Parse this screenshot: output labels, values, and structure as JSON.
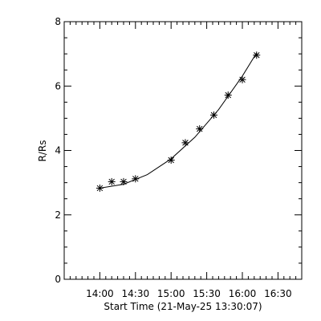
{
  "chart_data": {
    "type": "scatter",
    "title": "",
    "xlabel": "Start Time (21-May-25 13:30:07)",
    "ylabel": "R/Rs",
    "xlim": [
      "13:30",
      "16:50"
    ],
    "ylim": [
      0,
      8
    ],
    "x_ticks": [
      "14:00",
      "14:30",
      "15:00",
      "15:30",
      "16:00",
      "16:30"
    ],
    "y_ticks": [
      0,
      2,
      4,
      6,
      8
    ],
    "grid": false,
    "legend": "none",
    "series": [
      {
        "marker": "asterisk",
        "x": [
          "14:00",
          "14:10",
          "14:20",
          "14:30",
          "15:00",
          "15:12",
          "15:24",
          "15:36",
          "15:48",
          "16:00",
          "16:12"
        ],
        "y": [
          2.83,
          3.03,
          3.03,
          3.12,
          3.7,
          4.24,
          4.67,
          5.1,
          5.72,
          6.2,
          6.96
        ]
      }
    ],
    "fit_curve": {
      "type": "quadratic",
      "x": [
        "14:00",
        "14:20",
        "14:40",
        "15:00",
        "15:20",
        "15:40",
        "16:00",
        "16:12"
      ],
      "y": [
        2.83,
        2.95,
        3.25,
        3.74,
        4.41,
        5.27,
        6.31,
        7.03
      ]
    }
  }
}
